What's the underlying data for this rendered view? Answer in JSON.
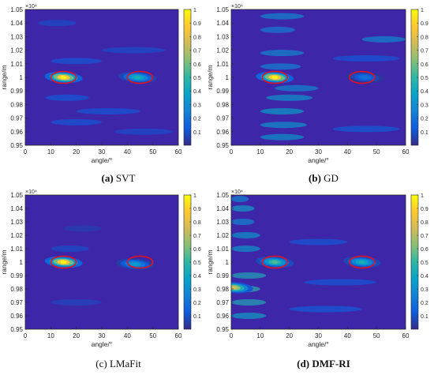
{
  "chart_data": [
    {
      "type": "heatmap",
      "panel_label": "(a)",
      "caption_name": "SVT",
      "xlabel": "angle/°",
      "ylabel": "range/m",
      "exponent_label": "×10⁴",
      "xlim": [
        0,
        60
      ],
      "ylim": [
        0.95,
        1.05
      ],
      "x_ticks": [
        "0",
        "10",
        "20",
        "30",
        "40",
        "50",
        "60"
      ],
      "y_ticks": [
        "0.95",
        "0.96",
        "0.97",
        "0.98",
        "0.99",
        "1",
        "1.01",
        "1.02",
        "1.03",
        "1.04",
        "1.05"
      ],
      "colorbar_range": [
        0,
        1
      ],
      "colorbar_ticks": [
        "0.1",
        "0.2",
        "0.3",
        "0.4",
        "0.5",
        "0.6",
        "0.7",
        "0.8",
        "0.9",
        "1"
      ],
      "colormap": "parula",
      "peaks": [
        {
          "angle": 15,
          "range": 1.0,
          "intensity": 1.0
        },
        {
          "angle": 44,
          "range": 1.0,
          "intensity": 0.45
        }
      ],
      "marked_targets": [
        {
          "angle": 15,
          "range": 1.0
        },
        {
          "angle": 45,
          "range": 1.0
        }
      ]
    },
    {
      "type": "heatmap",
      "panel_label": "(b)",
      "caption_name": "GD",
      "xlabel": "angle/°",
      "ylabel": "range/m",
      "exponent_label": "×10⁴",
      "xlim": [
        0,
        60
      ],
      "ylim": [
        0.95,
        1.05
      ],
      "x_ticks": [
        "0",
        "10",
        "20",
        "30",
        "40",
        "50",
        "60"
      ],
      "y_ticks": [
        "0.95",
        "0.96",
        "0.97",
        "0.98",
        "0.99",
        "1",
        "1.01",
        "1.02",
        "1.03",
        "1.04",
        "1.05"
      ],
      "colorbar_range": [
        0,
        1
      ],
      "colorbar_ticks": [
        "0.1",
        "0.2",
        "0.3",
        "0.4",
        "0.5",
        "0.6",
        "0.7",
        "0.8",
        "0.9",
        "1"
      ],
      "colormap": "parula",
      "peaks": [
        {
          "angle": 15,
          "range": 1.0,
          "intensity": 1.0
        },
        {
          "angle": 46,
          "range": 1.0,
          "intensity": 0.2
        }
      ],
      "marked_targets": [
        {
          "angle": 15,
          "range": 1.0
        },
        {
          "angle": 45,
          "range": 1.0
        }
      ]
    },
    {
      "type": "heatmap",
      "panel_label": "(c)",
      "caption_name": "LMaFit",
      "xlabel": "angle/°",
      "ylabel": "range/m",
      "exponent_label": "×10⁴",
      "xlim": [
        0,
        60
      ],
      "ylim": [
        0.95,
        1.05
      ],
      "x_ticks": [
        "0",
        "10",
        "20",
        "30",
        "40",
        "50",
        "60"
      ],
      "y_ticks": [
        "0.95",
        "0.96",
        "0.97",
        "0.98",
        "0.99",
        "1",
        "1.01",
        "1.02",
        "1.03",
        "1.04",
        "1.05"
      ],
      "colorbar_range": [
        0,
        1
      ],
      "colorbar_ticks": [
        "0.1",
        "0.2",
        "0.3",
        "0.4",
        "0.5",
        "0.6",
        "0.7",
        "0.8",
        "0.9",
        "1"
      ],
      "colormap": "parula",
      "peaks": [
        {
          "angle": 15,
          "range": 1.0,
          "intensity": 1.0
        },
        {
          "angle": 43,
          "range": 0.9985,
          "intensity": 0.35
        }
      ],
      "marked_targets": [
        {
          "angle": 15,
          "range": 1.0
        },
        {
          "angle": 45,
          "range": 1.0
        }
      ]
    },
    {
      "type": "heatmap",
      "panel_label": "(d)",
      "caption_name": "DMF-RI",
      "xlabel": "angle/°",
      "ylabel": "range/m",
      "exponent_label": "×10⁴",
      "xlim": [
        0,
        60
      ],
      "ylim": [
        0.95,
        1.05
      ],
      "x_ticks": [
        "0",
        "10",
        "20",
        "30",
        "40",
        "50",
        "60"
      ],
      "y_ticks": [
        "0.95",
        "0.96",
        "0.97",
        "0.98",
        "0.99",
        "1",
        "1.01",
        "1.02",
        "1.03",
        "1.04",
        "1.05"
      ],
      "colorbar_range": [
        0,
        1
      ],
      "colorbar_ticks": [
        "0.1",
        "0.2",
        "0.3",
        "0.4",
        "0.5",
        "0.6",
        "0.7",
        "0.8",
        "0.9",
        "1"
      ],
      "colormap": "parula",
      "peaks": [
        {
          "angle": 15,
          "range": 1.0,
          "intensity": 0.55
        },
        {
          "angle": 45,
          "range": 1.0,
          "intensity": 0.45
        },
        {
          "angle": 1,
          "range": 0.981,
          "intensity": 0.75
        }
      ],
      "marked_targets": [
        {
          "angle": 15,
          "range": 1.0
        },
        {
          "angle": 45,
          "range": 1.0
        }
      ]
    }
  ],
  "colors": {
    "marker_ellipse": "#e8101a",
    "background_low": "#3e26a8",
    "peak_high": "#f9fb0e"
  }
}
